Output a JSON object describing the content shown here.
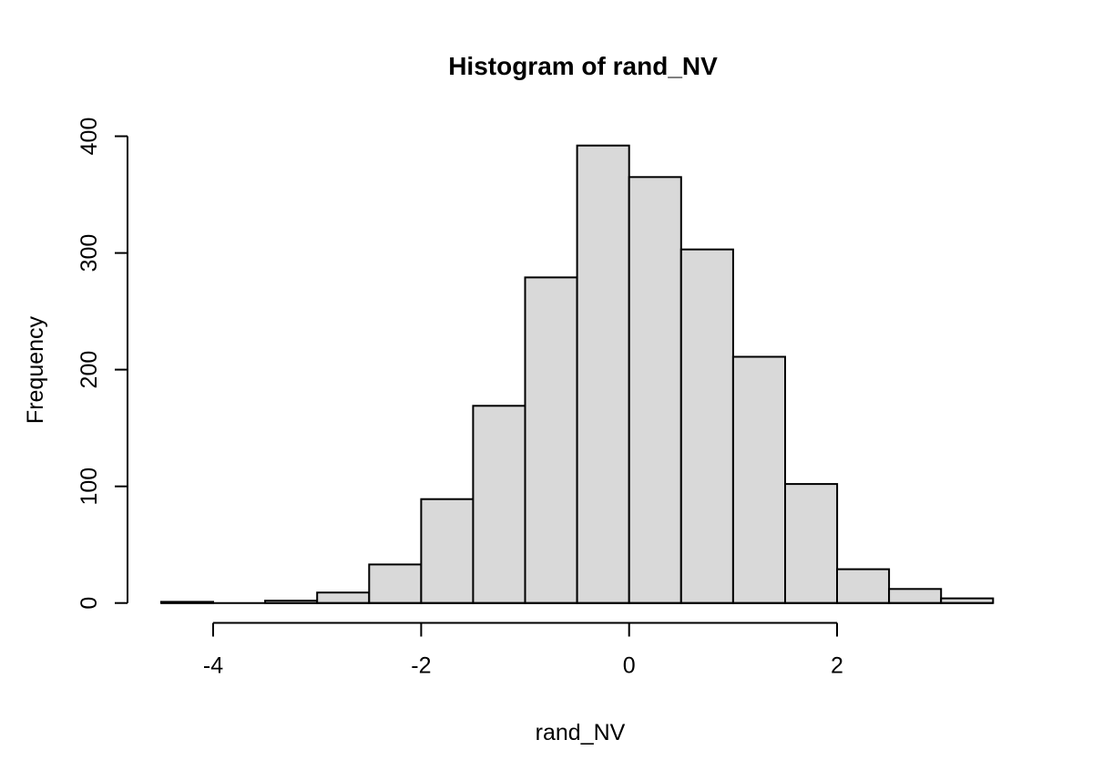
{
  "chart_data": {
    "type": "bar",
    "subtype": "histogram",
    "title": "Histogram of rand_NV",
    "xlabel": "rand_NV",
    "ylabel": "Frequency",
    "bin_edges": [
      -4.5,
      -4.0,
      -3.5,
      -3.0,
      -2.5,
      -2.0,
      -1.5,
      -1.0,
      -0.5,
      0.0,
      0.5,
      1.0,
      1.5,
      2.0,
      2.5,
      3.0,
      3.5
    ],
    "values": [
      1,
      0,
      2,
      9,
      33,
      89,
      169,
      279,
      392,
      365,
      303,
      211,
      102,
      29,
      12,
      4
    ],
    "total_count": 2000,
    "x_ticks": [
      -4,
      -2,
      0,
      2
    ],
    "x_tick_labels": [
      "-4",
      "-2",
      "0",
      "2"
    ],
    "y_ticks": [
      0,
      100,
      200,
      300,
      400
    ],
    "y_tick_labels": [
      "0",
      "100",
      "200",
      "300",
      "400"
    ],
    "xlim": [
      -4.5,
      3.5
    ],
    "ylim": [
      0,
      400
    ],
    "grid": false,
    "legend": "none",
    "bar_fill_color": "#d9d9d9",
    "bar_stroke_color": "#000000",
    "axis_color": "#000000",
    "background_color": "#ffffff"
  }
}
